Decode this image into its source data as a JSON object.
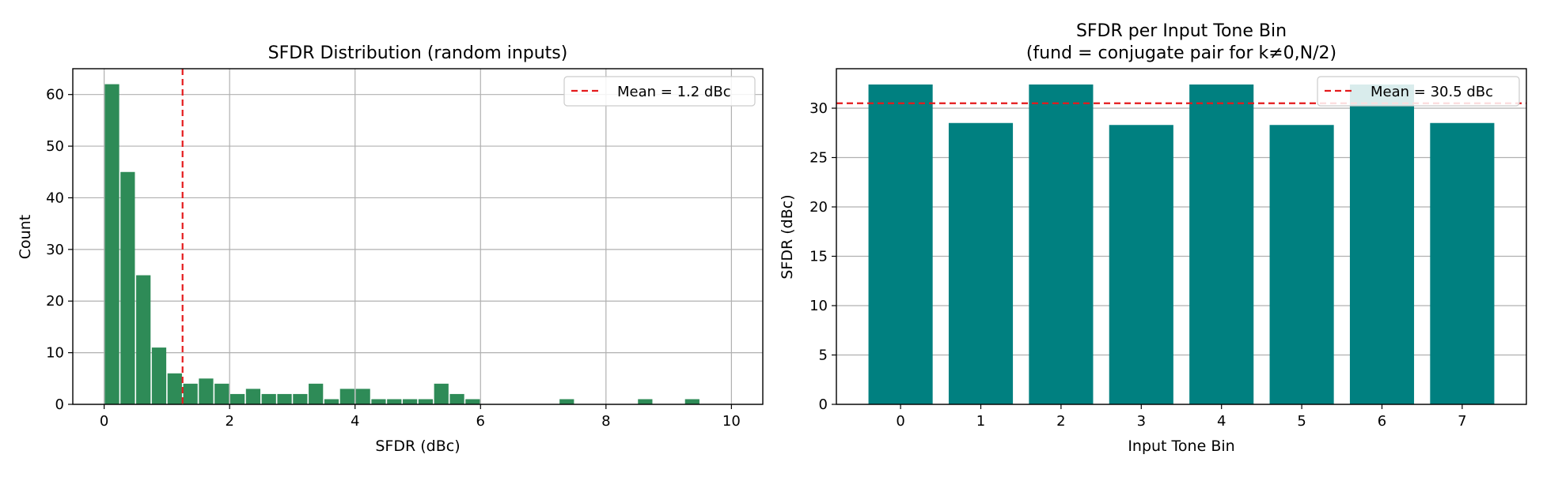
{
  "chart_data": [
    {
      "type": "bar",
      "subtype": "histogram",
      "title": "SFDR Distribution (random inputs)",
      "xlabel": "SFDR (dBc)",
      "ylabel": "Count",
      "xlim": [
        -0.5,
        10.5
      ],
      "ylim": [
        0,
        65
      ],
      "xticks": [
        0,
        2,
        4,
        6,
        8,
        10
      ],
      "yticks": [
        0,
        10,
        20,
        30,
        40,
        50,
        60
      ],
      "grid": true,
      "bin_start": 0,
      "bin_width": 0.25,
      "counts": [
        62,
        45,
        25,
        11,
        6,
        4,
        5,
        4,
        2,
        3,
        2,
        2,
        2,
        4,
        1,
        3,
        3,
        1,
        1,
        1,
        1,
        4,
        2,
        1,
        0,
        0,
        0,
        0,
        0,
        1,
        0,
        0,
        0,
        0,
        1,
        0,
        0,
        1,
        0,
        0
      ],
      "bar_color": "#2e8b57",
      "reference_line": {
        "orientation": "vertical",
        "value": 1.25,
        "label": "Mean = 1.2 dBc",
        "color": "#e41a1c",
        "style": "dashed"
      },
      "legend_position": "top-right"
    },
    {
      "type": "bar",
      "title": "SFDR per Input Tone Bin",
      "subtitle": "(fund = conjugate pair for k≠0,N/2)",
      "xlabel": "Input Tone Bin",
      "ylabel": "SFDR (dBc)",
      "categories": [
        "0",
        "1",
        "2",
        "3",
        "4",
        "5",
        "6",
        "7"
      ],
      "values": [
        32.4,
        28.5,
        32.4,
        28.3,
        32.4,
        28.3,
        32.4,
        28.5
      ],
      "ylim": [
        0,
        34
      ],
      "yticks": [
        0,
        5,
        10,
        15,
        20,
        25,
        30
      ],
      "grid": true,
      "grid_axis": "y",
      "bar_color": "#008080",
      "reference_line": {
        "orientation": "horizontal",
        "value": 30.5,
        "label": "Mean = 30.5 dBc",
        "color": "#e41a1c",
        "style": "dashed"
      },
      "legend_position": "top-right"
    }
  ]
}
